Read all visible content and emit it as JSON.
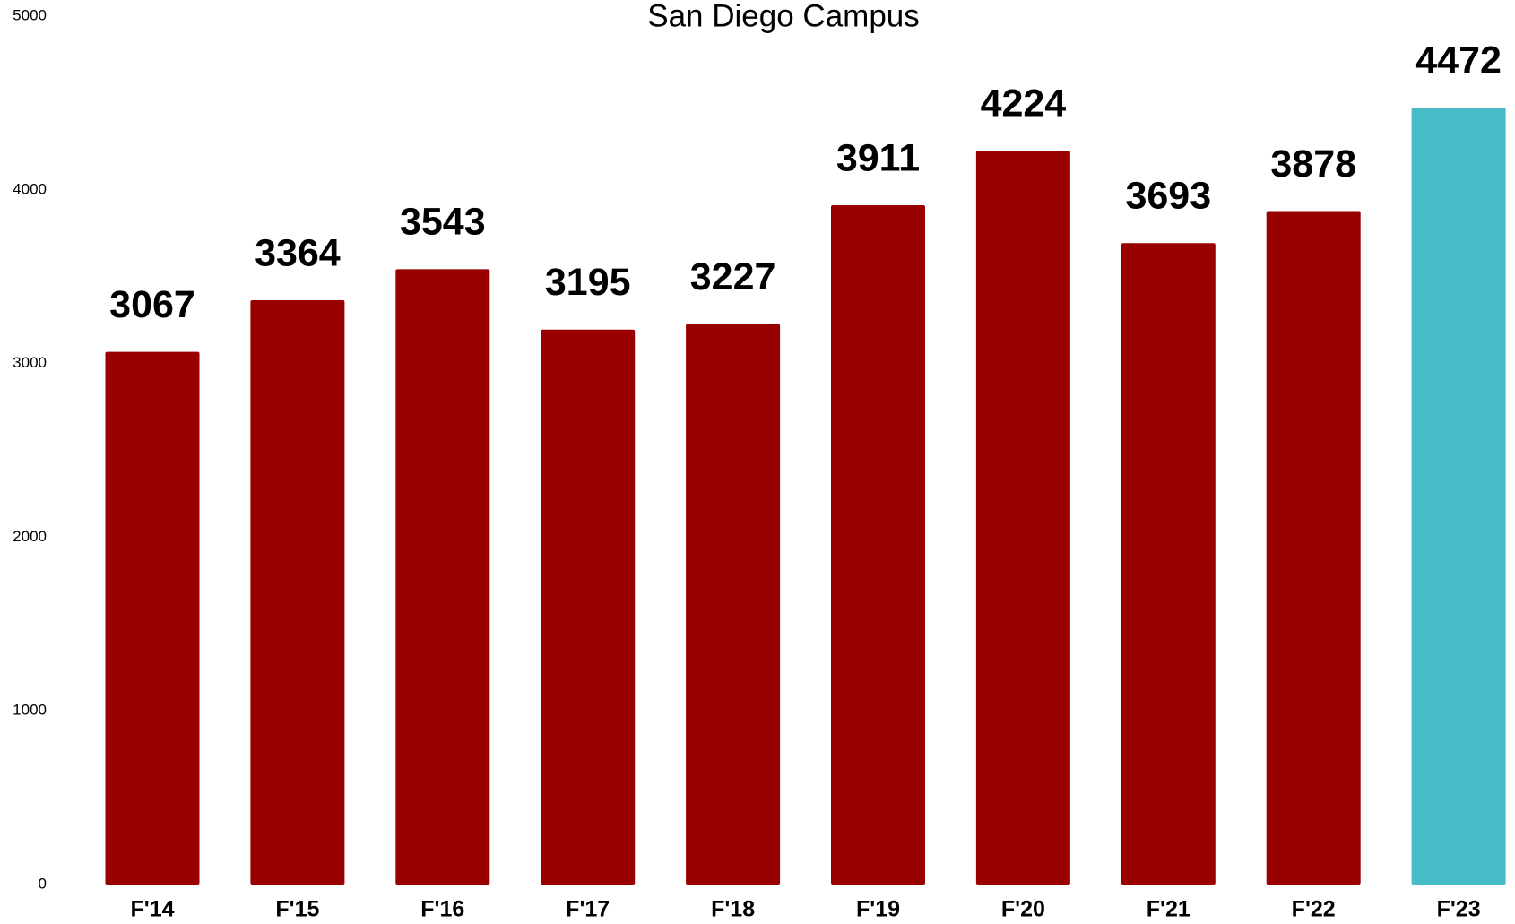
{
  "chart_data": {
    "type": "bar",
    "title": "San Diego Campus",
    "categories": [
      "F'14",
      "F'15",
      "F'16",
      "F'17",
      "F'18",
      "F'19",
      "F'20",
      "F'21",
      "F'22",
      "F'23"
    ],
    "values": [
      3067,
      3364,
      3543,
      3195,
      3227,
      3911,
      4224,
      3693,
      3878,
      4472
    ],
    "colors": [
      "#990000",
      "#990000",
      "#990000",
      "#990000",
      "#990000",
      "#990000",
      "#990000",
      "#990000",
      "#990000",
      "#47bcc6"
    ],
    "ylim": [
      0,
      5000
    ],
    "yticks": [
      0,
      1000,
      2000,
      3000,
      4000,
      5000
    ],
    "grid": false
  }
}
